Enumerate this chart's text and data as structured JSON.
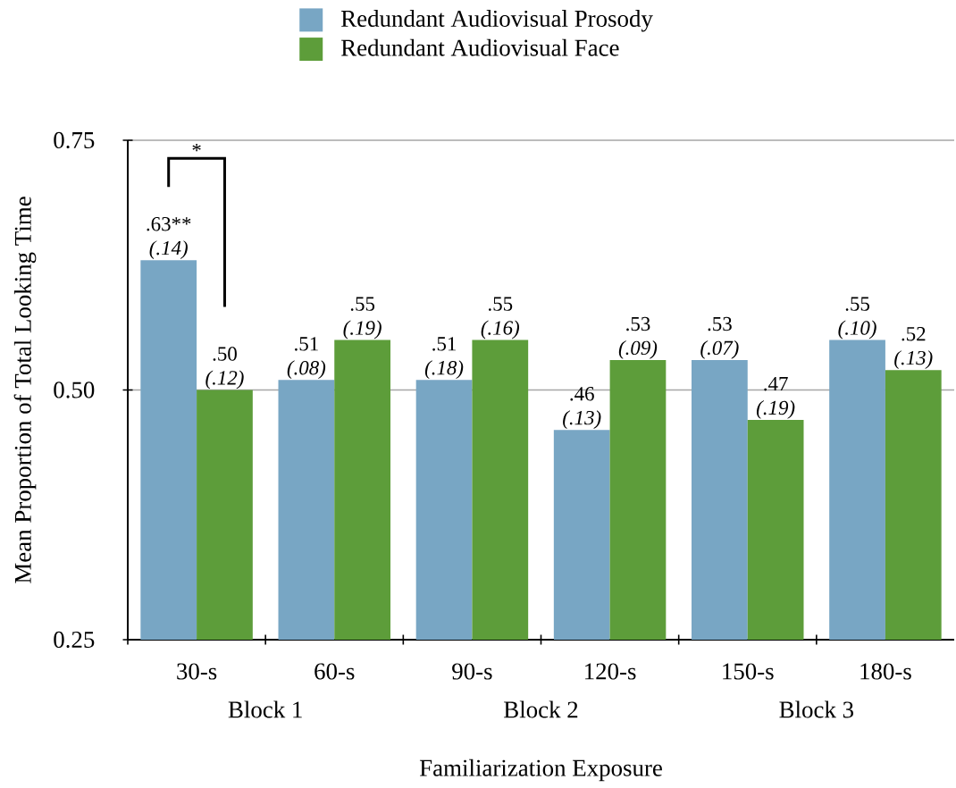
{
  "chart_data": {
    "type": "bar",
    "xlabel": "Familiarization Exposure",
    "ylabel": "Mean Proportion of Total Looking Time",
    "categories": [
      "30-s",
      "60-s",
      "90-s",
      "120-s",
      "150-s",
      "180-s"
    ],
    "series": [
      {
        "name": "Redundant Audiovisual Prosody",
        "color": "#78a6c4",
        "values": [
          0.63,
          0.51,
          0.51,
          0.46,
          0.53,
          0.55
        ],
        "value_labels": [
          ".63**\n*(.14)*",
          ".51\n*(.08)*",
          ".51\n*(.18)*",
          ".46\n*(.13)*",
          ".53\n*(.07)*",
          ".55\n*(.10)*"
        ]
      },
      {
        "name": "Redundant Audiovisual Face",
        "color": "#5d9d3a",
        "values": [
          0.5,
          0.55,
          0.55,
          0.53,
          0.47,
          0.52
        ],
        "value_labels": [
          ".50\n*(.12)*",
          ".55\n*(.19)*",
          ".55\n*(.16)*",
          ".53\n*(.09)*",
          ".47\n*(.19)*",
          ".52\n*(.13)*"
        ]
      }
    ],
    "ylim": [
      0.25,
      0.75
    ],
    "yticks": [
      0.25,
      {
        "value": 0.5,
        "label": "0.50"
      },
      0.75
    ],
    "grid": "y",
    "legend": "top",
    "annotations": [
      "*",
      "Block 1",
      "Block 2",
      "Block 3"
    ]
  }
}
